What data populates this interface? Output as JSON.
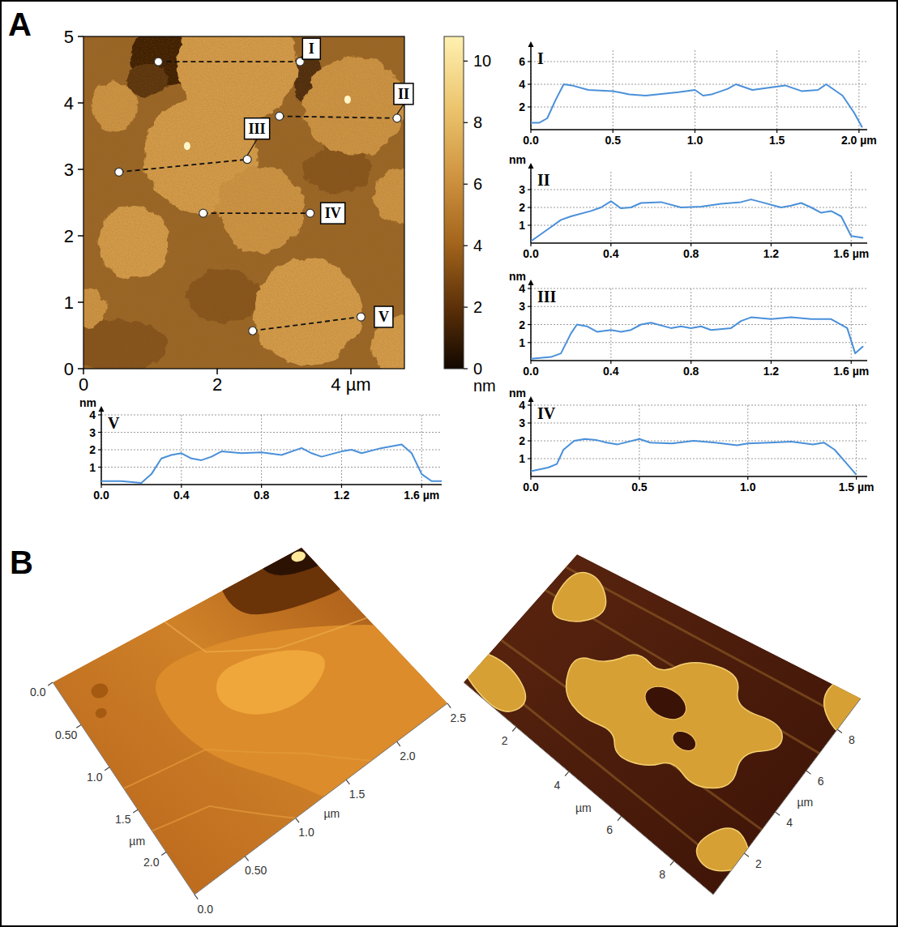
{
  "chart_data": [
    {
      "type": "image",
      "panel": "A",
      "xlim": [
        0,
        4.8
      ],
      "ylim": [
        0,
        5
      ],
      "xticks": [
        0,
        2,
        {
          "value": 4,
          "label": "4 µm"
        }
      ],
      "yticks": [
        0,
        1,
        2,
        3,
        4,
        5
      ],
      "color_range": [
        0,
        10.8
      ],
      "color_ticks": [
        0,
        2,
        4,
        6,
        8,
        10
      ],
      "color_label": "nm",
      "profiles": [
        {
          "name": "I",
          "x": [
            1.12,
            3.24
          ],
          "y": [
            4.62,
            4.62
          ]
        },
        {
          "name": "II",
          "x": [
            2.93,
            4.69
          ],
          "y": [
            3.8,
            3.77
          ]
        },
        {
          "name": "III",
          "x": [
            0.53,
            2.45
          ],
          "y": [
            2.96,
            3.15
          ]
        },
        {
          "name": "IV",
          "x": [
            1.79,
            3.39
          ],
          "y": [
            2.34,
            2.34
          ]
        },
        {
          "name": "V",
          "x": [
            2.53,
            4.15
          ],
          "y": [
            0.57,
            0.78
          ]
        }
      ]
    },
    {
      "type": "line",
      "title": "I",
      "color": "#4a90d9",
      "grid": true,
      "x": [
        0,
        0.05,
        0.1,
        0.15,
        0.2,
        0.25,
        0.35,
        0.5,
        0.6,
        0.7,
        0.9,
        1.0,
        1.05,
        1.1,
        1.2,
        1.25,
        1.35,
        1.45,
        1.55,
        1.65,
        1.75,
        1.8,
        1.9,
        1.97,
        2.02
      ],
      "values": [
        0.6,
        0.6,
        1.0,
        2.6,
        4.0,
        3.9,
        3.5,
        3.4,
        3.1,
        3.0,
        3.3,
        3.5,
        3.0,
        3.1,
        3.6,
        4.0,
        3.5,
        3.7,
        3.9,
        3.4,
        3.5,
        4.0,
        3.0,
        1.5,
        0.2
      ],
      "xlim": [
        0,
        2.05
      ],
      "ylim": [
        0,
        7
      ],
      "xticks": [
        {
          "value": 0,
          "label": "0.0"
        },
        0.5,
        {
          "value": 1,
          "label": "1.0"
        },
        1.5,
        {
          "value": 2,
          "label": "2.0 µm"
        }
      ],
      "yticks": [
        2,
        4,
        6
      ]
    },
    {
      "type": "line",
      "title": "II",
      "ylabel": "nm",
      "color": "#4a90d9",
      "grid": true,
      "x": [
        0,
        0.05,
        0.1,
        0.15,
        0.2,
        0.3,
        0.35,
        0.4,
        0.45,
        0.5,
        0.55,
        0.65,
        0.75,
        0.85,
        0.95,
        1.05,
        1.1,
        1.15,
        1.25,
        1.3,
        1.35,
        1.4,
        1.45,
        1.5,
        1.55,
        1.6,
        1.66
      ],
      "values": [
        0.1,
        0.5,
        0.9,
        1.3,
        1.5,
        1.8,
        2.0,
        2.35,
        1.95,
        2.0,
        2.25,
        2.3,
        2.0,
        2.05,
        2.2,
        2.3,
        2.45,
        2.3,
        2.0,
        2.1,
        2.25,
        2.0,
        1.7,
        1.8,
        1.5,
        0.4,
        0.3
      ],
      "xlim": [
        0,
        1.68
      ],
      "ylim": [
        0,
        4
      ],
      "xticks": [
        {
          "value": 0,
          "label": "0.0"
        },
        0.4,
        0.8,
        1.2,
        {
          "value": 1.6,
          "label": "1.6 µm"
        }
      ],
      "yticks": [
        1,
        2,
        3
      ]
    },
    {
      "type": "line",
      "title": "III",
      "ylabel": "nm",
      "color": "#4a90d9",
      "grid": true,
      "x": [
        0,
        0.1,
        0.15,
        0.2,
        0.23,
        0.28,
        0.33,
        0.4,
        0.45,
        0.5,
        0.55,
        0.6,
        0.7,
        0.75,
        0.8,
        0.85,
        0.9,
        1.0,
        1.05,
        1.1,
        1.2,
        1.3,
        1.4,
        1.5,
        1.58,
        1.62,
        1.66
      ],
      "values": [
        0.1,
        0.2,
        0.4,
        1.5,
        2.0,
        1.9,
        1.6,
        1.7,
        1.6,
        1.7,
        2.0,
        2.1,
        1.8,
        1.9,
        1.8,
        1.9,
        1.7,
        1.8,
        2.2,
        2.4,
        2.3,
        2.4,
        2.3,
        2.3,
        1.8,
        0.4,
        0.8
      ],
      "xlim": [
        0,
        1.68
      ],
      "ylim": [
        0,
        4
      ],
      "xticks": [
        {
          "value": 0,
          "label": "0.0"
        },
        0.4,
        0.8,
        1.2,
        {
          "value": 1.6,
          "label": "1.6 µm"
        }
      ],
      "yticks": [
        1,
        2,
        3,
        4
      ]
    },
    {
      "type": "line",
      "title": "IV",
      "ylabel": "nm",
      "color": "#4a90d9",
      "grid": true,
      "x": [
        0,
        0.08,
        0.12,
        0.15,
        0.2,
        0.25,
        0.3,
        0.35,
        0.4,
        0.5,
        0.55,
        0.65,
        0.75,
        0.85,
        0.95,
        1.0,
        1.1,
        1.2,
        1.3,
        1.35,
        1.4,
        1.45,
        1.5
      ],
      "values": [
        0.3,
        0.5,
        0.7,
        1.5,
        2.0,
        2.1,
        2.05,
        1.9,
        1.8,
        2.1,
        1.9,
        1.85,
        2.0,
        1.9,
        1.75,
        1.85,
        1.9,
        1.95,
        1.8,
        1.9,
        1.5,
        0.8,
        0.1
      ],
      "xlim": [
        0,
        1.55
      ],
      "ylim": [
        0,
        4
      ],
      "xticks": [
        {
          "value": 0,
          "label": "0.0"
        },
        0.5,
        {
          "value": 1,
          "label": "1.0"
        },
        {
          "value": 1.5,
          "label": "1.5 µm"
        }
      ],
      "yticks": [
        1,
        2,
        3,
        4
      ]
    },
    {
      "type": "line",
      "title": "V",
      "ylabel": "nm",
      "color": "#4a90d9",
      "grid": true,
      "x": [
        0,
        0.1,
        0.2,
        0.25,
        0.3,
        0.35,
        0.4,
        0.45,
        0.5,
        0.55,
        0.6,
        0.7,
        0.8,
        0.9,
        1.0,
        1.05,
        1.1,
        1.2,
        1.25,
        1.3,
        1.4,
        1.5,
        1.55,
        1.6,
        1.65,
        1.7
      ],
      "values": [
        0.2,
        0.2,
        0.1,
        0.6,
        1.5,
        1.7,
        1.8,
        1.5,
        1.4,
        1.6,
        1.9,
        1.8,
        1.85,
        1.7,
        2.1,
        1.8,
        1.6,
        1.9,
        2.0,
        1.8,
        2.1,
        2.3,
        1.8,
        0.6,
        0.2,
        0.2
      ],
      "xlim": [
        0,
        1.7
      ],
      "ylim": [
        0,
        4
      ],
      "xticks": [
        {
          "value": 0,
          "label": "0.0"
        },
        0.4,
        0.8,
        1.2,
        {
          "value": 1.6,
          "label": "1.6 µm"
        }
      ],
      "yticks": [
        1,
        2,
        3,
        4
      ]
    },
    {
      "type": "surface",
      "panel": "B",
      "xlabel": "µm",
      "ylabel": "µm",
      "xlim": [
        0,
        2.5
      ],
      "ylim": [
        0,
        2.5
      ],
      "xticks": [
        {
          "value": 0,
          "label": "0.0"
        },
        {
          "value": 0.5,
          "label": "0.50"
        },
        {
          "value": 1,
          "label": "1.0"
        },
        1.5,
        {
          "value": 2,
          "label": "2.0"
        }
      ],
      "yticks": [
        {
          "value": 0,
          "label": "0.0"
        },
        {
          "value": 0.5,
          "label": "0.50"
        },
        {
          "value": 1,
          "label": "1.0"
        },
        1.5,
        {
          "value": 2,
          "label": "2.0"
        },
        2.5
      ]
    },
    {
      "type": "surface",
      "xlabel": "µm",
      "ylabel": "µm",
      "xlim": [
        0,
        9.5
      ],
      "ylim": [
        0,
        9.5
      ],
      "xticks": [
        2,
        4,
        6,
        8
      ],
      "yticks": [
        2,
        4,
        6,
        8
      ]
    }
  ]
}
